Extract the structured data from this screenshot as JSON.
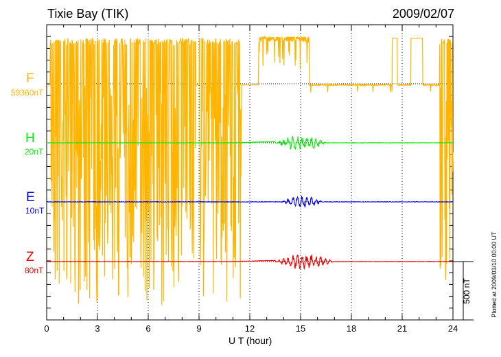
{
  "chart_data": {
    "type": "line",
    "title": "Tixie Bay (TIK)",
    "date": "2009/02/07",
    "xlabel": "U T (hour)",
    "xlim": [
      0,
      24
    ],
    "xticks": [
      "0",
      "3",
      "6",
      "9",
      "12",
      "15",
      "18",
      "21",
      "24"
    ],
    "scale_bar_label": "500 nT",
    "scale_bar_nT": 500,
    "plotted_note": "Plotted at 2009/03/10 00:00 UT",
    "grid": true,
    "series": [
      {
        "name": "F",
        "baseline_label": "59360nT",
        "color": "#ffb400",
        "high_nT": 390,
        "quiet_nT": -10,
        "spiky_intervals_h": [
          [
            0.2,
            5.7,
            -1900
          ],
          [
            5.7,
            8.8,
            -1900
          ],
          [
            9.0,
            11.5,
            -1900
          ],
          [
            12.5,
            15.5,
            -300
          ],
          [
            23.2,
            24,
            -1700
          ]
        ],
        "boxes_h": [
          [
            20.4,
            20.7
          ],
          [
            21.5,
            22.2
          ]
        ]
      },
      {
        "name": "H",
        "baseline_label": "20nT",
        "color": "#00ee00",
        "disturb_h": [
          13.5,
          16.5
        ],
        "amp_nT": 60
      },
      {
        "name": "E",
        "baseline_label": "10nT",
        "color": "#0000ee",
        "disturb_h": [
          13.8,
          16.3
        ],
        "amp_nT": 50
      },
      {
        "name": "Z",
        "baseline_label": "80nT",
        "color": "#ee0000",
        "disturb_h": [
          13.5,
          17
        ],
        "amp_nT": 60
      }
    ]
  }
}
